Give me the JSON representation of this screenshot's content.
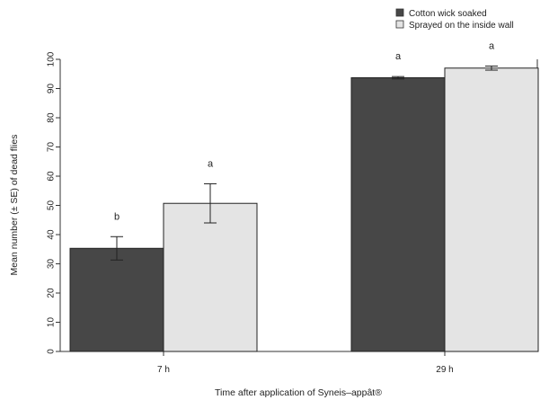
{
  "chart_data": {
    "type": "bar",
    "categories": [
      "7 h",
      "29 h"
    ],
    "series": [
      {
        "name": "Cotton wick soaked",
        "color": "#474747",
        "values": [
          35.3,
          93.7
        ],
        "se": [
          4.0,
          0.4
        ],
        "letters": [
          "b",
          "a"
        ]
      },
      {
        "name": "Sprayed on the inside wall",
        "color": "#e4e4e4",
        "values": [
          50.7,
          97.0
        ],
        "se": [
          6.7,
          0.7
        ],
        "letters": [
          "a",
          "a"
        ]
      }
    ],
    "xlabel": "Time after application of Syneis–appât®",
    "ylabel": "Mean number (± SE) of dead flies",
    "ylim": [
      0,
      100
    ],
    "yticks": [
      0,
      10,
      20,
      30,
      40,
      50,
      60,
      70,
      80,
      90,
      100
    ],
    "grid": false,
    "legend": "top-right"
  }
}
